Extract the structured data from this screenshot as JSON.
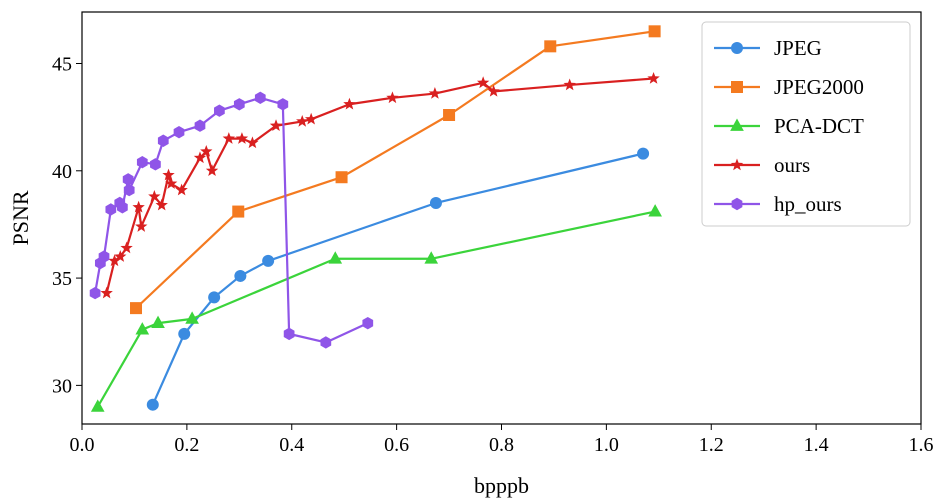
{
  "chart_data": {
    "type": "line",
    "title": "",
    "xlabel": "bpppb",
    "ylabel": "PSNR",
    "xlim": [
      0.0,
      1.6
    ],
    "ylim": [
      28.2,
      47.4
    ],
    "xticks": [
      "0.0",
      "0.2",
      "0.4",
      "0.6",
      "0.8",
      "1.0",
      "1.2",
      "1.4",
      "1.6"
    ],
    "yticks": [
      "30",
      "35",
      "40",
      "45"
    ],
    "grid": false,
    "legend_position": "top-right",
    "series": [
      {
        "name": "JPEG",
        "color": "#3b8be0",
        "marker": "circle",
        "x": [
          0.135,
          0.195,
          0.252,
          0.302,
          0.355,
          0.675,
          1.07
        ],
        "y": [
          29.1,
          32.4,
          34.1,
          35.1,
          35.8,
          38.5,
          40.8
        ]
      },
      {
        "name": "JPEG2000",
        "color": "#f47a20",
        "marker": "square",
        "x": [
          0.103,
          0.298,
          0.495,
          0.7,
          0.893,
          1.092
        ],
        "y": [
          33.6,
          38.1,
          39.7,
          42.6,
          45.8,
          46.5
        ]
      },
      {
        "name": "PCA-DCT",
        "color": "#3bd43b",
        "marker": "triangle",
        "x": [
          0.03,
          0.115,
          0.145,
          0.21,
          0.483,
          0.666,
          1.093
        ],
        "y": [
          29.0,
          32.6,
          32.9,
          33.1,
          35.9,
          35.9,
          38.1
        ]
      },
      {
        "name": "ours",
        "color": "#d92020",
        "marker": "star",
        "x": [
          0.047,
          0.062,
          0.073,
          0.085,
          0.108,
          0.113,
          0.138,
          0.152,
          0.165,
          0.17,
          0.19,
          0.225,
          0.237,
          0.248,
          0.28,
          0.305,
          0.325,
          0.37,
          0.42,
          0.437,
          0.51,
          0.592,
          0.673,
          0.765,
          0.785,
          0.93,
          1.09
        ],
        "y": [
          34.3,
          35.8,
          36.0,
          36.4,
          38.3,
          37.4,
          38.8,
          38.4,
          39.8,
          39.4,
          39.1,
          40.6,
          40.9,
          40.0,
          41.5,
          41.5,
          41.3,
          42.1,
          42.3,
          42.4,
          43.1,
          43.4,
          43.6,
          44.1,
          43.7,
          44.0,
          44.3
        ]
      },
      {
        "name": "hp_ours",
        "color": "#8f55e8",
        "marker": "hexagon",
        "x": [
          0.025,
          0.035,
          0.042,
          0.055,
          0.072,
          0.077,
          0.088,
          0.09,
          0.115,
          0.14,
          0.155,
          0.185,
          0.225,
          0.262,
          0.3,
          0.34,
          0.383,
          0.395,
          0.465,
          0.545
        ],
        "y": [
          34.3,
          35.7,
          36.0,
          38.2,
          38.5,
          38.3,
          39.6,
          39.1,
          40.4,
          40.3,
          41.4,
          41.8,
          42.1,
          42.8,
          43.1,
          43.4,
          43.1,
          32.4,
          32.0,
          32.9
        ]
      }
    ]
  }
}
